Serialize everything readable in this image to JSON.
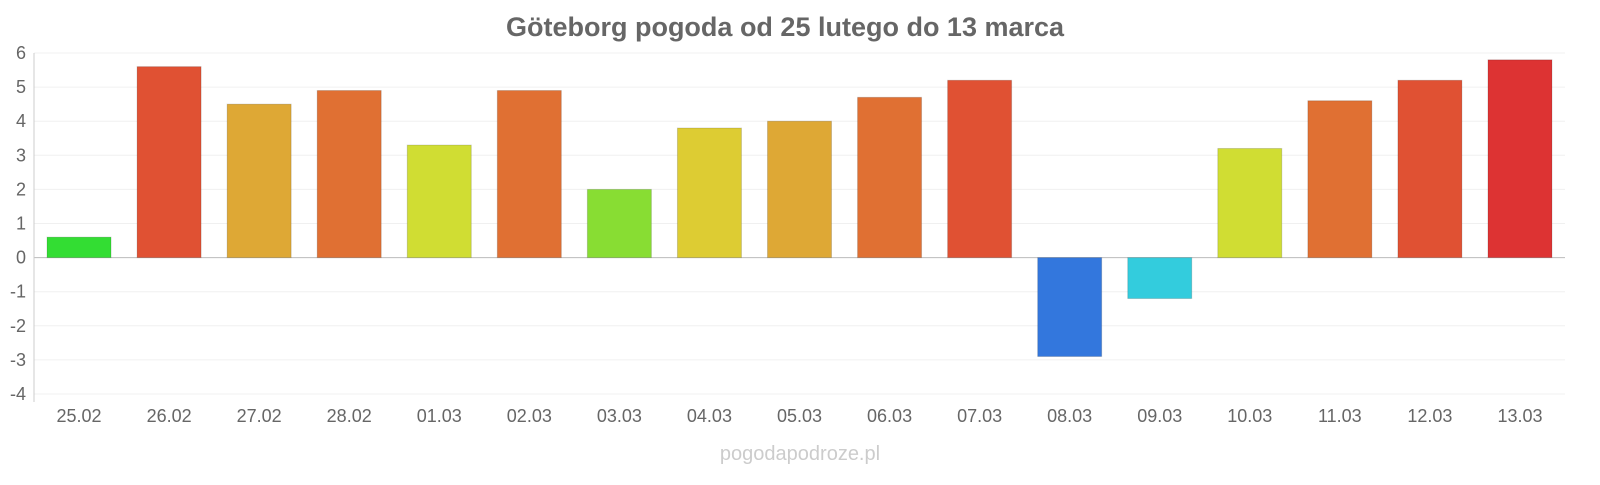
{
  "chart_data": {
    "type": "bar",
    "title": "Göteborg pogoda od 25 lutego do 13 marca",
    "xlabel": "",
    "ylabel": "",
    "ylim": [
      -4,
      6
    ],
    "yticks": [
      6,
      5,
      4,
      3,
      2,
      1,
      0,
      -1,
      -2,
      -3,
      -4
    ],
    "grid": true,
    "categories": [
      "25.02",
      "26.02",
      "27.02",
      "28.02",
      "01.03",
      "02.03",
      "03.03",
      "04.03",
      "05.03",
      "06.03",
      "07.03",
      "08.03",
      "09.03",
      "10.03",
      "11.03",
      "12.03",
      "13.03"
    ],
    "values": [
      0.6,
      5.6,
      4.5,
      4.9,
      3.3,
      4.9,
      2.0,
      3.8,
      4.0,
      4.7,
      5.2,
      -2.9,
      -1.2,
      3.2,
      4.6,
      5.2,
      5.8
    ],
    "colors": [
      "#33dd33",
      "#e05133",
      "#dea835",
      "#e07033",
      "#d0dd33",
      "#e07033",
      "#88dd33",
      "#ddcc33",
      "#dea835",
      "#e07033",
      "#e05133",
      "#3377dd",
      "#33ccdd",
      "#d0dd33",
      "#e07033",
      "#e05133",
      "#dd3333"
    ]
  },
  "watermark": "pogodapodroze.pl"
}
